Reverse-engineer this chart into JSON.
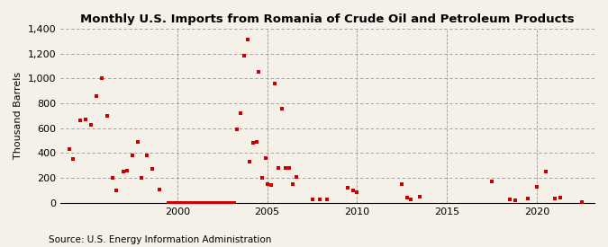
{
  "title": "Monthly U.S. Imports from Romania of Crude Oil and Petroleum Products",
  "ylabel": "Thousand Barrels",
  "source": "Source: U.S. Energy Information Administration",
  "background_color": "#F5F0E8",
  "marker_color": "#CC0000",
  "ylim": [
    0,
    1400
  ],
  "yticks": [
    0,
    200,
    400,
    600,
    800,
    1000,
    1200,
    1400
  ],
  "xlim_start": 1993.5,
  "xlim_end": 2023.2,
  "xticks": [
    2000,
    2005,
    2010,
    2015,
    2020
  ],
  "data": [
    [
      1994.0,
      430
    ],
    [
      1994.2,
      350
    ],
    [
      1994.6,
      660
    ],
    [
      1994.9,
      670
    ],
    [
      1995.2,
      630
    ],
    [
      1995.5,
      860
    ],
    [
      1995.8,
      1000
    ],
    [
      1996.1,
      700
    ],
    [
      1996.4,
      200
    ],
    [
      1996.6,
      100
    ],
    [
      1997.0,
      250
    ],
    [
      1997.2,
      260
    ],
    [
      1997.5,
      380
    ],
    [
      1997.8,
      490
    ],
    [
      1998.0,
      200
    ],
    [
      1998.3,
      380
    ],
    [
      1998.6,
      270
    ],
    [
      1999.0,
      110
    ],
    [
      1999.5,
      0
    ],
    [
      1999.7,
      0
    ],
    [
      1999.9,
      0
    ],
    [
      2000.0,
      0
    ],
    [
      2000.2,
      0
    ],
    [
      2000.4,
      0
    ],
    [
      2000.6,
      0
    ],
    [
      2000.8,
      0
    ],
    [
      2001.0,
      0
    ],
    [
      2001.2,
      0
    ],
    [
      2001.4,
      0
    ],
    [
      2001.6,
      0
    ],
    [
      2001.8,
      0
    ],
    [
      2002.0,
      0
    ],
    [
      2002.2,
      0
    ],
    [
      2002.4,
      0
    ],
    [
      2002.6,
      0
    ],
    [
      2002.8,
      0
    ],
    [
      2003.0,
      0
    ],
    [
      2003.05,
      0
    ],
    [
      2003.1,
      0
    ],
    [
      2003.15,
      0
    ],
    [
      2003.3,
      590
    ],
    [
      2003.5,
      720
    ],
    [
      2003.7,
      1180
    ],
    [
      2003.9,
      1310
    ],
    [
      2004.0,
      330
    ],
    [
      2004.2,
      480
    ],
    [
      2004.4,
      490
    ],
    [
      2004.5,
      1055
    ],
    [
      2004.7,
      200
    ],
    [
      2004.9,
      360
    ],
    [
      2005.0,
      150
    ],
    [
      2005.2,
      140
    ],
    [
      2005.4,
      960
    ],
    [
      2005.6,
      280
    ],
    [
      2005.8,
      760
    ],
    [
      2006.0,
      280
    ],
    [
      2006.2,
      280
    ],
    [
      2006.4,
      150
    ],
    [
      2006.6,
      210
    ],
    [
      2007.5,
      30
    ],
    [
      2007.9,
      25
    ],
    [
      2008.3,
      30
    ],
    [
      2009.5,
      125
    ],
    [
      2009.8,
      100
    ],
    [
      2010.0,
      85
    ],
    [
      2012.5,
      150
    ],
    [
      2012.8,
      40
    ],
    [
      2013.0,
      30
    ],
    [
      2013.5,
      50
    ],
    [
      2017.5,
      170
    ],
    [
      2018.5,
      25
    ],
    [
      2018.8,
      20
    ],
    [
      2019.5,
      35
    ],
    [
      2020.0,
      130
    ],
    [
      2020.5,
      250
    ],
    [
      2021.0,
      35
    ],
    [
      2021.3,
      40
    ],
    [
      2022.5,
      10
    ]
  ]
}
